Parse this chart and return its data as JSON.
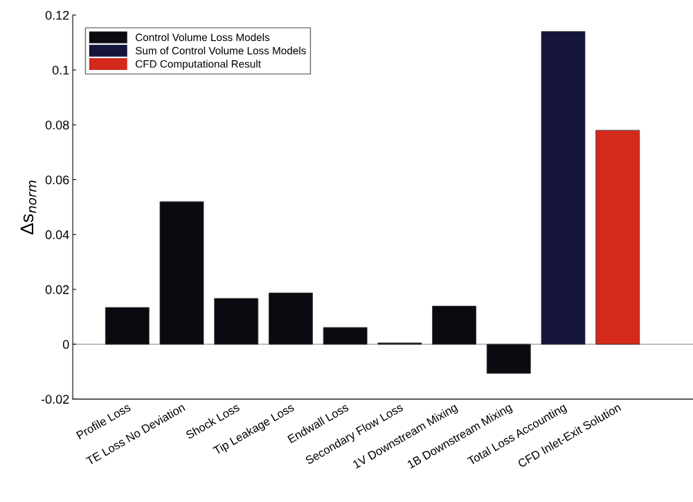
{
  "chart_data": {
    "type": "bar",
    "ylabel": "Δs$_{norm}$",
    "categories": [
      "Profile Loss",
      "TE Loss No Deviation",
      "Shock Loss",
      "Tip Leakage Loss",
      "Endwall Loss",
      "Secondary Flow Loss",
      "1V Downstream Mixing",
      "1B Downstream Mixing",
      "Total Loss Accounting",
      "CFD Inlet-Exit Solution"
    ],
    "series": [
      {
        "name": "Control Volume Loss Models",
        "color": "#0a0a10",
        "values": [
          0.0134,
          0.052,
          0.0167,
          0.0187,
          0.0061,
          0.0005,
          0.0139,
          -0.0106,
          null,
          null
        ]
      },
      {
        "name": "Sum of Control Volume Loss Models",
        "color": "#14143c",
        "values": [
          null,
          null,
          null,
          null,
          null,
          null,
          null,
          null,
          0.114,
          null
        ]
      },
      {
        "name": "CFD Computational Result",
        "color": "#d42a1c",
        "values": [
          null,
          null,
          null,
          null,
          null,
          null,
          null,
          null,
          null,
          0.078
        ]
      }
    ],
    "ylim": [
      -0.02,
      0.12
    ],
    "yticks": [
      {
        "value": -0.02,
        "label": "-0.02"
      },
      0,
      0.02,
      0.04,
      0.06,
      0.08,
      0.1,
      0.12
    ],
    "ref_lines": [
      {
        "axis": "y",
        "value": 0,
        "color": "#999999"
      }
    ],
    "legend": "top left"
  }
}
